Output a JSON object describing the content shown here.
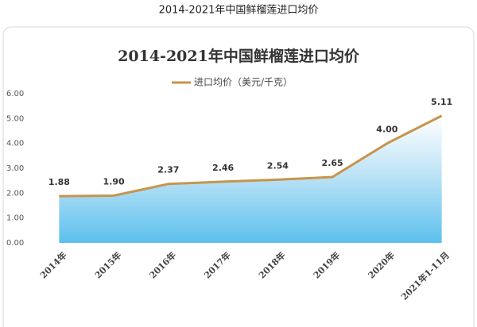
{
  "caption": "2014-2021年中国鲜榴莲进口均价",
  "chart_data": {
    "type": "area-line",
    "title": "2014-2021年中国鲜榴莲进口均价",
    "categories": [
      "2014年",
      "2015年",
      "2016年",
      "2017年",
      "2018年",
      "2019年",
      "2020年",
      "2021年1-11月"
    ],
    "series": [
      {
        "name": "进口均价（美元/千克）",
        "color": "#c8944c",
        "values": [
          1.88,
          1.9,
          2.37,
          2.46,
          2.54,
          2.65,
          4.0,
          5.11
        ],
        "value_labels": [
          "1.88",
          "1.90",
          "2.37",
          "2.46",
          "2.54",
          "2.65",
          "4.00",
          "5.11"
        ]
      }
    ],
    "ylim": [
      0,
      6
    ],
    "yticks": [
      {
        "value": 0,
        "label": "0.00"
      },
      {
        "value": 1,
        "label": "1.00"
      },
      {
        "value": 2,
        "label": "2.00"
      },
      {
        "value": 3,
        "label": "3.00"
      },
      {
        "value": 4,
        "label": "4.00"
      },
      {
        "value": 5,
        "label": "5.00"
      },
      {
        "value": 6,
        "label": "6.00"
      }
    ],
    "grid": false,
    "legend": "top"
  }
}
